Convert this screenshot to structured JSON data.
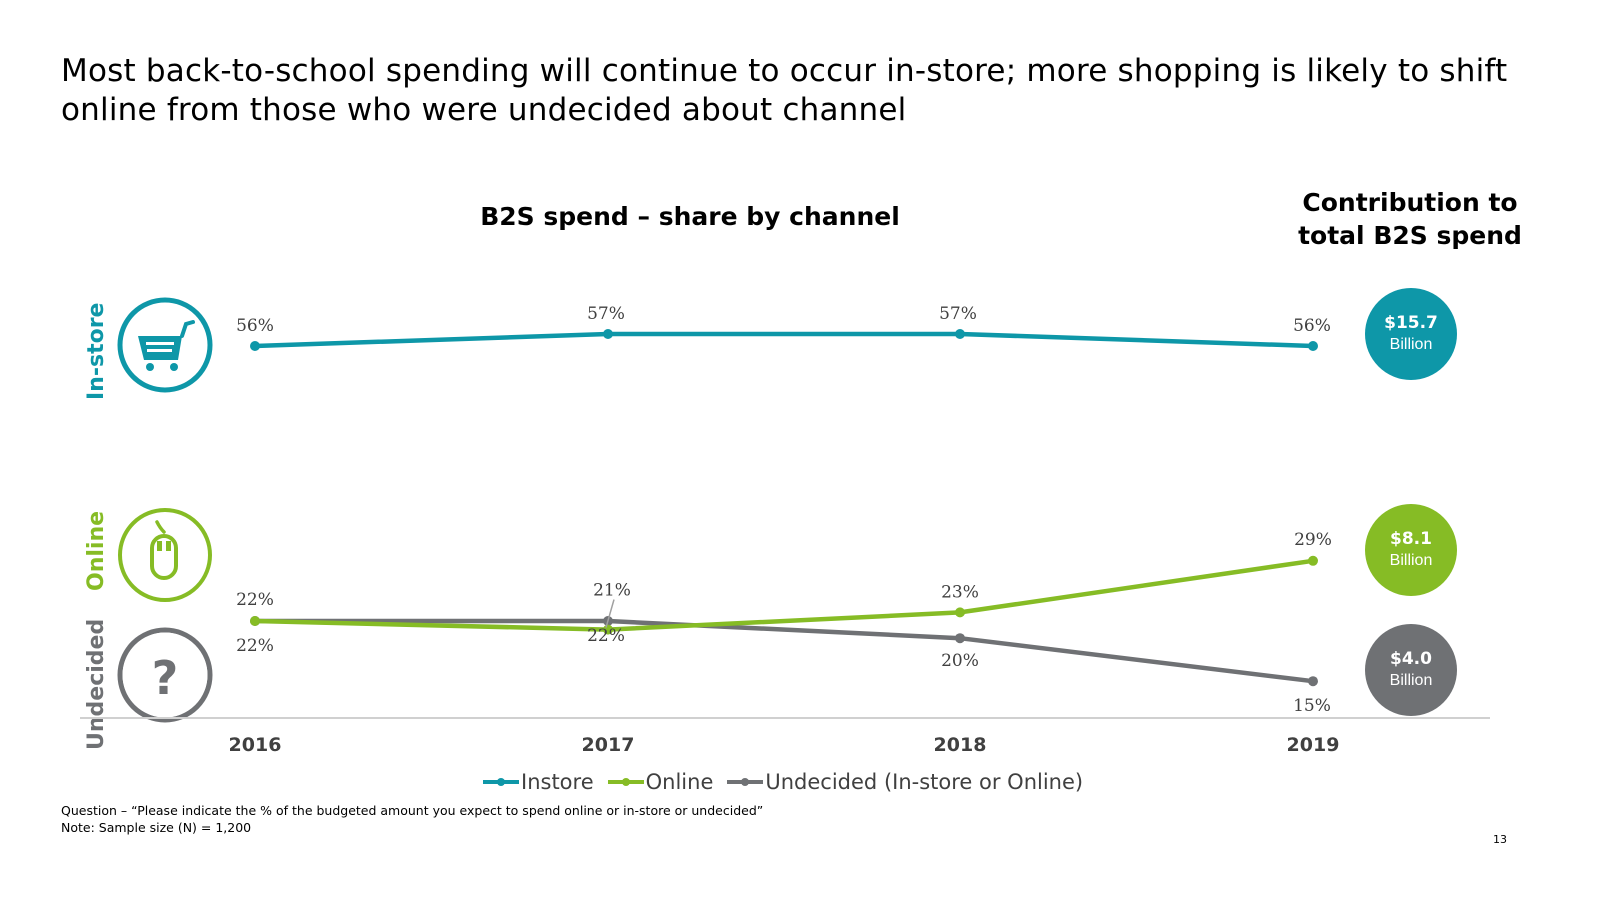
{
  "headline": "Most back-to-school spending will continue to occur in-store; more shopping is likely to shift online from those who were undecided about channel",
  "contribution_title_line1": "Contribution to",
  "contribution_title_line2": "total B2S spend",
  "colors": {
    "instore": "#0E97A8",
    "online": "#86BC25",
    "undecided": "#6F7174",
    "axis": "#D0D0D0",
    "label": "#404040"
  },
  "channels": [
    {
      "key": "instore",
      "side_label": "In-store",
      "icon": "shopping-cart-icon",
      "bubble_amount": "$15.7",
      "bubble_unit": "Billion"
    },
    {
      "key": "online",
      "side_label": "Online",
      "icon": "computer-mouse-icon",
      "bubble_amount": "$8.1",
      "bubble_unit": "Billion"
    },
    {
      "key": "undecided",
      "side_label": "Undecided",
      "icon": "question-mark-icon",
      "bubble_amount": "$4.0",
      "bubble_unit": "Billion"
    }
  ],
  "legend": [
    {
      "key": "instore",
      "label": "Instore"
    },
    {
      "key": "online",
      "label": "Online"
    },
    {
      "key": "undecided",
      "label": "Undecided (In-store or Online)"
    }
  ],
  "footnotes": {
    "question": "Question – “Please indicate the % of the budgeted amount you expect to spend online or in-store or undecided”",
    "note": "Note: Sample size (N) = 1,200"
  },
  "page_number": "13",
  "chart_data": {
    "type": "line",
    "title": "B2S spend – share by channel",
    "xlabel": "",
    "ylabel": "",
    "categories": [
      "2016",
      "2017",
      "2018",
      "2019"
    ],
    "series": [
      {
        "name": "Instore",
        "key": "instore",
        "values": [
          56,
          57,
          57,
          56
        ],
        "labels": [
          "56%",
          "57%",
          "57%",
          "56%"
        ]
      },
      {
        "name": "Online",
        "key": "online",
        "values": [
          22,
          21,
          23,
          29
        ],
        "labels": [
          "22%",
          "21%",
          "23%",
          "29%"
        ]
      },
      {
        "name": "Undecided (In-store or Online)",
        "key": "undecided",
        "values": [
          22,
          22,
          20,
          15
        ],
        "labels": [
          "22%",
          "22%",
          "20%",
          "15%"
        ]
      }
    ],
    "unit": "%",
    "grid": false,
    "legend_position": "bottom",
    "y_axis_visible": false
  }
}
